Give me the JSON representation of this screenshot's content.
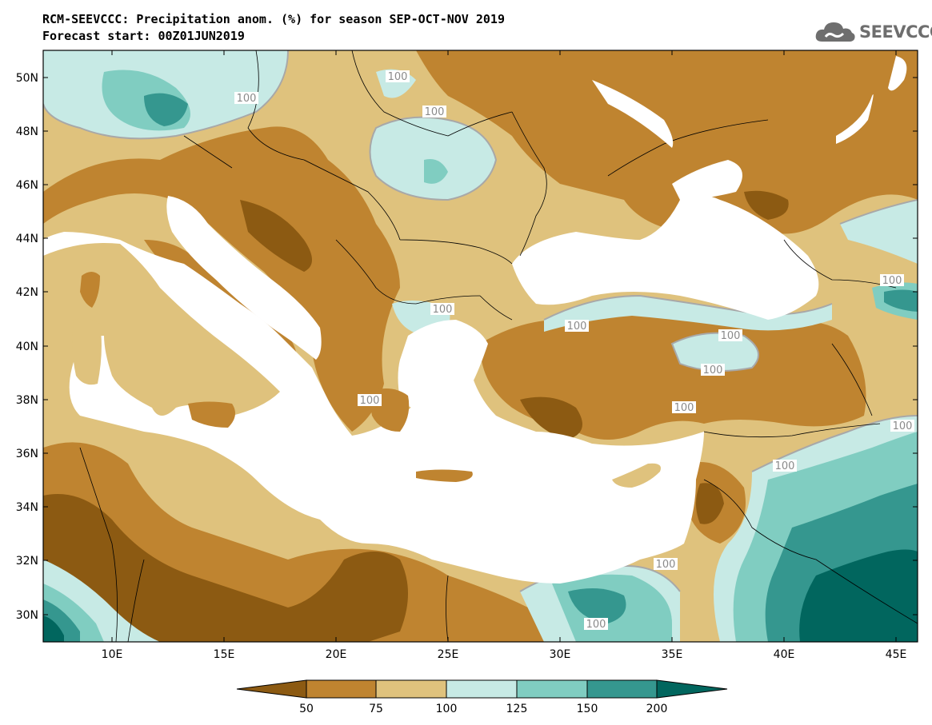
{
  "header": {
    "title_line1": "RCM-SEEVCCC: Precipitation anom. (%) for season SEP-OCT-NOV 2019",
    "title_line2": "Forecast start: 00Z01JUN2019",
    "logo_text": "SEEVCCC"
  },
  "map": {
    "lat_labels": [
      "50N",
      "48N",
      "46N",
      "44N",
      "42N",
      "40N",
      "38N",
      "36N",
      "34N",
      "32N",
      "30N"
    ],
    "lon_labels": [
      "10E",
      "15E",
      "20E",
      "25E",
      "30E",
      "35E",
      "40E",
      "45E"
    ],
    "contour_labels": [
      "100",
      "100",
      "100",
      "100",
      "100",
      "100",
      "100",
      "100",
      "100",
      "100",
      "100",
      "100",
      "100",
      "100"
    ],
    "colors": {
      "sea": "#ffffff",
      "below_50": "#8c5a12",
      "r50_75": "#bf8430",
      "r75_100": "#dfc27d",
      "r100_125": "#c7eae5",
      "r125_150": "#80cdc1",
      "r150_200": "#35978f",
      "above_200": "#01665e",
      "contour": "#a8a8a8",
      "border": "#000000"
    }
  },
  "colorbar": {
    "labels": [
      "50",
      "75",
      "100",
      "125",
      "150",
      "200"
    ]
  }
}
